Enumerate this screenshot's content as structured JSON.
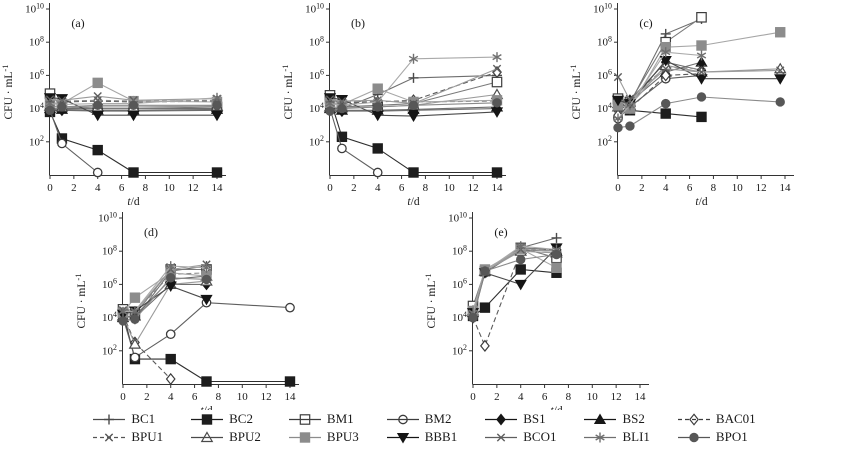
{
  "chart_data": {
    "type": "line",
    "title": "",
    "xlabel_italic": "t",
    "xlabel_rest": "/d",
    "ylabel_base": "CFU · mL",
    "ylabel_exp": "-1",
    "y_base": "10",
    "x_ticks": [
      0,
      2,
      4,
      6,
      8,
      10,
      12,
      14
    ],
    "y_tick_exponents": [
      2,
      4,
      6,
      8,
      10
    ],
    "xlim": [
      0,
      14
    ],
    "ylim_exponents": [
      0,
      10
    ],
    "grid": false,
    "legend_position": "bottom",
    "series_defs": [
      {
        "name": "BC1",
        "marker": "plus",
        "dash": false,
        "line_color": "#6e6e6e",
        "marker_color": "#4a4a4a"
      },
      {
        "name": "BC2",
        "marker": "square",
        "dash": false,
        "line_color": "#2e2e2e",
        "marker_color": "#1d1d1d"
      },
      {
        "name": "BM1",
        "marker": "square-open",
        "dash": false,
        "line_color": "#7a7a7a",
        "marker_color": "#3c3c3c"
      },
      {
        "name": "BM2",
        "marker": "circle-open",
        "dash": false,
        "line_color": "#5f5f5f",
        "marker_color": "#3c3c3c"
      },
      {
        "name": "BS1",
        "marker": "diamond",
        "dash": false,
        "line_color": "#6e6e6e",
        "marker_color": "#161616"
      },
      {
        "name": "BS2",
        "marker": "tri-up",
        "dash": false,
        "line_color": "#6e6e6e",
        "marker_color": "#161616"
      },
      {
        "name": "BAC01",
        "marker": "diamond-open",
        "dash": true,
        "line_color": "#5a5a5a",
        "marker_color": "#3c3c3c"
      },
      {
        "name": "BPU1",
        "marker": "x",
        "dash": true,
        "line_color": "#8a8a8a",
        "marker_color": "#555555"
      },
      {
        "name": "BPU2",
        "marker": "tri-up-open",
        "dash": false,
        "line_color": "#9a9a9a",
        "marker_color": "#4a4a4a"
      },
      {
        "name": "BPU3",
        "marker": "square",
        "dash": false,
        "line_color": "#a6a6a6",
        "marker_color": "#8c8c8c"
      },
      {
        "name": "BBB1",
        "marker": "tri-down",
        "dash": false,
        "line_color": "#4a4a4a",
        "marker_color": "#151515"
      },
      {
        "name": "BCO1",
        "marker": "x",
        "dash": false,
        "line_color": "#9b9b9b",
        "marker_color": "#5e5e5e"
      },
      {
        "name": "BLI1",
        "marker": "asterisk",
        "dash": false,
        "line_color": "#a9a9a9",
        "marker_color": "#6f6f6f"
      },
      {
        "name": "BPO1",
        "marker": "circle",
        "dash": false,
        "line_color": "#8a8a8a",
        "marker_color": "#575757"
      }
    ],
    "panels": [
      {
        "id": "a",
        "label": "(a)",
        "t": [
          0,
          1,
          4,
          7,
          14
        ],
        "log10_values": {
          "BC1": [
            4.0,
            4.0,
            4.0,
            4.0,
            4.0
          ],
          "BC2": [
            3.8,
            2.2,
            1.5,
            0.15,
            0.15
          ],
          "BM1": [
            4.9,
            4.1,
            4.0,
            4.0,
            4.1
          ],
          "BM2": [
            3.9,
            1.9,
            0.15,
            null,
            null
          ],
          "BS1": [
            3.9,
            3.9,
            3.85,
            3.85,
            3.9
          ],
          "BS2": [
            4.0,
            3.95,
            3.9,
            3.9,
            3.95
          ],
          "BAC01": [
            4.45,
            4.4,
            4.45,
            4.4,
            4.45
          ],
          "BPU1": [
            4.5,
            4.45,
            4.5,
            4.45,
            4.5
          ],
          "BPU2": [
            4.15,
            4.1,
            4.1,
            4.1,
            4.15
          ],
          "BPU3": [
            4.35,
            4.3,
            5.55,
            4.45,
            4.4
          ],
          "BBB1": [
            4.65,
            4.6,
            3.6,
            3.6,
            3.6
          ],
          "BCO1": [
            4.55,
            4.5,
            4.75,
            4.5,
            4.6
          ],
          "BLI1": [
            4.3,
            4.25,
            4.3,
            4.3,
            4.65
          ],
          "BPO1": [
            3.9,
            4.1,
            4.2,
            4.2,
            4.2
          ]
        }
      },
      {
        "id": "b",
        "label": "(b)",
        "t": [
          0,
          1,
          4,
          7,
          14
        ],
        "log10_values": {
          "BC1": [
            4.0,
            4.0,
            4.85,
            5.85,
            6.0
          ],
          "BC2": [
            4.6,
            2.3,
            1.6,
            0.15,
            0.15
          ],
          "BM1": [
            4.8,
            4.1,
            4.2,
            4.3,
            5.6
          ],
          "BM2": [
            4.0,
            1.6,
            0.15,
            null,
            null
          ],
          "BS1": [
            3.9,
            3.85,
            3.85,
            3.9,
            4.0
          ],
          "BS2": [
            4.0,
            3.9,
            3.9,
            3.95,
            4.1
          ],
          "BAC01": [
            4.45,
            4.35,
            4.4,
            4.5,
            6.2
          ],
          "BPU1": [
            4.5,
            4.4,
            4.45,
            4.4,
            4.45
          ],
          "BPU2": [
            4.1,
            4.05,
            4.1,
            4.2,
            4.85
          ],
          "BPU3": [
            4.35,
            4.25,
            5.2,
            4.4,
            4.5
          ],
          "BBB1": [
            4.65,
            4.55,
            3.6,
            3.55,
            3.8
          ],
          "BCO1": [
            4.55,
            4.45,
            4.5,
            4.3,
            6.4
          ],
          "BLI1": [
            4.3,
            4.2,
            4.4,
            7.0,
            7.1
          ],
          "BPO1": [
            3.85,
            4.0,
            4.1,
            4.2,
            4.35
          ]
        }
      },
      {
        "id": "c",
        "label": "(c)",
        "t": [
          0,
          1,
          4,
          7,
          13.6
        ],
        "log10_values": {
          "BC1": [
            3.5,
            4.3,
            8.5,
            9.4,
            null
          ],
          "BC2": [
            4.5,
            3.9,
            3.7,
            3.5,
            null
          ],
          "BM1": [
            4.6,
            4.4,
            8.0,
            9.5,
            null
          ],
          "BM2": [
            3.4,
            4.1,
            5.8,
            6.0,
            null
          ],
          "BS1": [
            4.4,
            4.5,
            6.8,
            6.3,
            null
          ],
          "BS2": [
            4.3,
            4.4,
            6.2,
            6.8,
            null
          ],
          "BAC01": [
            3.6,
            4.0,
            6.0,
            6.1,
            null
          ],
          "BPU1": [
            4.0,
            4.6,
            6.5,
            6.4,
            null
          ],
          "BPU2": [
            4.1,
            4.2,
            6.6,
            6.2,
            6.4
          ],
          "BPU3": [
            4.2,
            4.0,
            7.7,
            7.8,
            8.6
          ],
          "BBB1": [
            4.5,
            4.3,
            6.9,
            5.8,
            5.8
          ],
          "BCO1": [
            5.9,
            4.5,
            6.4,
            6.2,
            6.3
          ],
          "BLI1": [
            3.4,
            4.2,
            7.4,
            7.2,
            null
          ],
          "BPO1": [
            2.85,
            2.95,
            4.3,
            4.7,
            4.4
          ]
        }
      },
      {
        "id": "d",
        "label": "(d)",
        "t": [
          0,
          1,
          4,
          7,
          14
        ],
        "log10_values": {
          "BC1": [
            4.2,
            3.9,
            6.8,
            7.1,
            null
          ],
          "BC2": [
            4.3,
            1.5,
            1.5,
            0.15,
            0.15
          ],
          "BM1": [
            4.5,
            4.2,
            6.9,
            6.9,
            null
          ],
          "BM2": [
            4.0,
            1.6,
            3.0,
            4.9,
            4.6
          ],
          "BS1": [
            4.1,
            4.0,
            6.0,
            6.0,
            null
          ],
          "BS2": [
            4.0,
            4.1,
            6.3,
            6.5,
            null
          ],
          "BAC01": [
            4.2,
            2.5,
            0.3,
            null,
            null
          ],
          "BPU1": [
            4.4,
            4.3,
            6.6,
            6.7,
            null
          ],
          "BPU2": [
            4.1,
            2.4,
            6.0,
            6.2,
            null
          ],
          "BPU3": [
            4.3,
            5.2,
            6.7,
            6.5,
            null
          ],
          "BBB1": [
            4.2,
            4.4,
            5.9,
            5.1,
            null
          ],
          "BCO1": [
            4.45,
            4.35,
            6.9,
            7.2,
            null
          ],
          "BLI1": [
            4.35,
            4.4,
            7.1,
            7.0,
            null
          ],
          "BPO1": [
            3.8,
            3.9,
            6.4,
            6.3,
            null
          ]
        }
      },
      {
        "id": "e",
        "label": "(e)",
        "t": [
          0,
          1,
          4,
          7
        ],
        "log10_values": {
          "BC1": [
            4.4,
            6.8,
            8.2,
            8.8
          ],
          "BC2": [
            4.1,
            4.6,
            6.9,
            6.7
          ],
          "BM1": [
            4.7,
            6.8,
            8.2,
            7.6
          ],
          "BM2": [
            4.0,
            6.7,
            8.1,
            8.0
          ],
          "BS1": [
            4.3,
            6.8,
            8.2,
            8.1
          ],
          "BS2": [
            4.3,
            6.8,
            8.1,
            8.0
          ],
          "BAC01": [
            4.0,
            2.3,
            8.0,
            8.1
          ],
          "BPU1": [
            4.3,
            6.8,
            8.2,
            8.0
          ],
          "BPU2": [
            4.4,
            6.8,
            8.0,
            7.9
          ],
          "BPU3": [
            4.4,
            6.9,
            8.15,
            7.0
          ],
          "BBB1": [
            4.3,
            6.7,
            6.0,
            8.2
          ],
          "BCO1": [
            4.2,
            6.8,
            8.1,
            8.0
          ],
          "BLI1": [
            4.3,
            6.8,
            8.3,
            8.1
          ],
          "BPO1": [
            4.0,
            6.8,
            7.5,
            7.8
          ]
        }
      }
    ]
  }
}
